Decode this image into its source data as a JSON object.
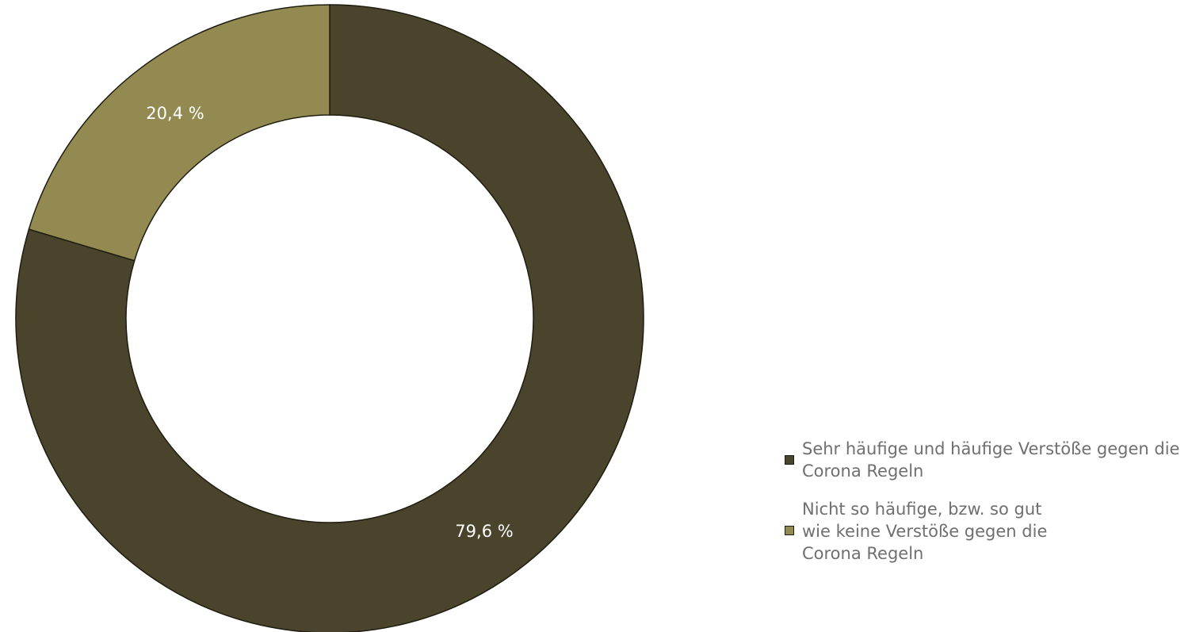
{
  "chart_data": {
    "type": "pie",
    "donut": true,
    "title": "",
    "legend_position": "right",
    "categories": [
      "Sehr häufige und häufige Verstöße gegen die Corona Regeln",
      "Nicht so häufige, bzw. so gut wie keine Verstöße gegen die Corona Regeln"
    ],
    "values": [
      79.6,
      20.4
    ],
    "labels": [
      "79,6 %",
      "20,4 %"
    ],
    "colors": [
      "#4a442c",
      "#938a52"
    ]
  }
}
